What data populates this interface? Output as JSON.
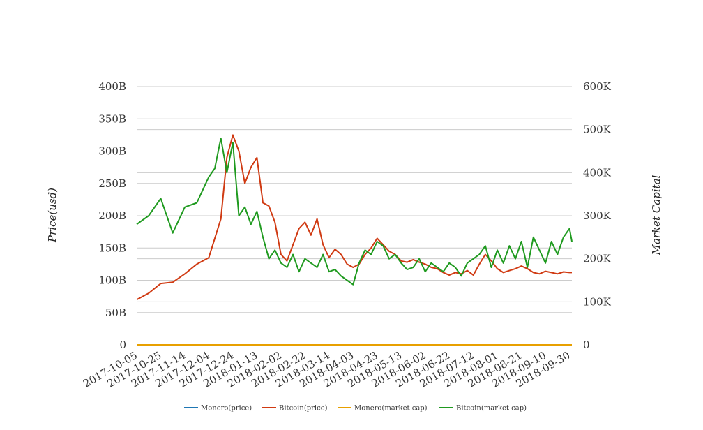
{
  "chart_data": {
    "type": "line",
    "title": "",
    "xlabel": "",
    "ylabel_left": "Price(usd)",
    "ylabel_right": "Market Capital",
    "x_ticks": [
      "2017-10-05",
      "2017-10-25",
      "2017-11-14",
      "2017-12-04",
      "2017-12-24",
      "2018-01-13",
      "2018-02-02",
      "2018-02-22",
      "2018-03-14",
      "2018-04-03",
      "2018-04-23",
      "2018-05-13",
      "2018-06-02",
      "2018-06-22",
      "2018-07-12",
      "2018-08-01",
      "2018-08-21",
      "2018-09-10",
      "2018-09-30"
    ],
    "y_left_ticks": [
      "0",
      "50B",
      "100B",
      "150B",
      "200B",
      "250B",
      "300B",
      "350B",
      "400B"
    ],
    "y_right_ticks": [
      "0",
      "100K",
      "200K",
      "300K",
      "400K",
      "500K",
      "600K"
    ],
    "ylim_left": [
      0,
      400
    ],
    "ylim_right": [
      0,
      600
    ],
    "grid": true,
    "legend_position": "bottom",
    "x_dates": [
      "2017-10-05",
      "2017-10-15",
      "2017-10-25",
      "2017-11-04",
      "2017-11-14",
      "2017-11-24",
      "2017-12-04",
      "2017-12-09",
      "2017-12-14",
      "2017-12-19",
      "2017-12-24",
      "2017-12-29",
      "2018-01-03",
      "2018-01-08",
      "2018-01-13",
      "2018-01-18",
      "2018-01-23",
      "2018-01-28",
      "2018-02-02",
      "2018-02-07",
      "2018-02-12",
      "2018-02-17",
      "2018-02-22",
      "2018-02-27",
      "2018-03-04",
      "2018-03-09",
      "2018-03-14",
      "2018-03-19",
      "2018-03-24",
      "2018-03-29",
      "2018-04-03",
      "2018-04-08",
      "2018-04-13",
      "2018-04-18",
      "2018-04-23",
      "2018-04-28",
      "2018-05-03",
      "2018-05-08",
      "2018-05-13",
      "2018-05-18",
      "2018-05-23",
      "2018-05-28",
      "2018-06-02",
      "2018-06-07",
      "2018-06-12",
      "2018-06-17",
      "2018-06-22",
      "2018-06-27",
      "2018-07-02",
      "2018-07-07",
      "2018-07-12",
      "2018-07-17",
      "2018-07-22",
      "2018-07-27",
      "2018-08-01",
      "2018-08-06",
      "2018-08-11",
      "2018-08-16",
      "2018-08-21",
      "2018-08-26",
      "2018-08-31",
      "2018-09-05",
      "2018-09-10",
      "2018-09-15",
      "2018-09-20",
      "2018-09-25",
      "2018-09-30",
      "2018-10-02"
    ],
    "series": [
      {
        "name": "Monero(price)",
        "axis": "left",
        "color": "#1f77b4",
        "values": [
          0,
          0,
          0,
          0,
          0,
          0,
          0,
          0,
          0,
          0,
          0,
          0,
          0,
          0,
          0,
          0,
          0,
          0,
          0,
          0,
          0,
          0,
          0,
          0,
          0,
          0,
          0,
          0,
          0,
          0,
          0,
          0,
          0,
          0,
          0,
          0,
          0,
          0,
          0,
          0,
          0,
          0,
          0,
          0,
          0,
          0,
          0,
          0,
          0,
          0,
          0,
          0,
          0,
          0,
          0,
          0,
          0,
          0,
          0,
          0,
          0,
          0,
          0,
          0,
          0,
          0,
          0,
          0
        ]
      },
      {
        "name": "Bitcoin(price)",
        "axis": "left",
        "color": "#d03a12",
        "values": [
          70,
          80,
          95,
          97,
          110,
          125,
          135,
          165,
          195,
          290,
          325,
          300,
          250,
          275,
          290,
          220,
          215,
          190,
          140,
          130,
          155,
          180,
          190,
          170,
          195,
          155,
          135,
          148,
          140,
          125,
          120,
          125,
          140,
          150,
          165,
          155,
          145,
          140,
          130,
          128,
          132,
          128,
          125,
          120,
          118,
          112,
          108,
          112,
          110,
          115,
          108,
          125,
          140,
          130,
          118,
          112,
          115,
          118,
          122,
          118,
          112,
          110,
          114,
          112,
          110,
          113,
          112,
          112
        ]
      },
      {
        "name": "Monero(market cap)",
        "axis": "right",
        "color": "#e8a000",
        "values": [
          0,
          0,
          0,
          0,
          0,
          0,
          0,
          0,
          0,
          0,
          0,
          0,
          0,
          0,
          0,
          0,
          0,
          0,
          0,
          0,
          0,
          0,
          0,
          0,
          0,
          0,
          0,
          0,
          0,
          0,
          0,
          0,
          0,
          0,
          0,
          0,
          0,
          0,
          0,
          0,
          0,
          0,
          0,
          0,
          0,
          0,
          0,
          0,
          0,
          0,
          0,
          0,
          0,
          0,
          0,
          0,
          0,
          0,
          0,
          0,
          0,
          0,
          0,
          0,
          0,
          0,
          0,
          0
        ]
      },
      {
        "name": "Bitcoin(market cap)",
        "axis": "right",
        "color": "#1f9a1f",
        "values": [
          280,
          300,
          340,
          260,
          320,
          330,
          390,
          410,
          480,
          400,
          470,
          300,
          320,
          280,
          310,
          250,
          200,
          220,
          190,
          180,
          210,
          170,
          200,
          190,
          180,
          210,
          170,
          175,
          160,
          150,
          140,
          190,
          220,
          210,
          240,
          230,
          200,
          210,
          190,
          175,
          180,
          200,
          170,
          190,
          180,
          170,
          190,
          180,
          160,
          190,
          200,
          210,
          230,
          180,
          220,
          190,
          230,
          200,
          240,
          180,
          250,
          220,
          190,
          240,
          210,
          250,
          270,
          240
        ]
      }
    ]
  }
}
